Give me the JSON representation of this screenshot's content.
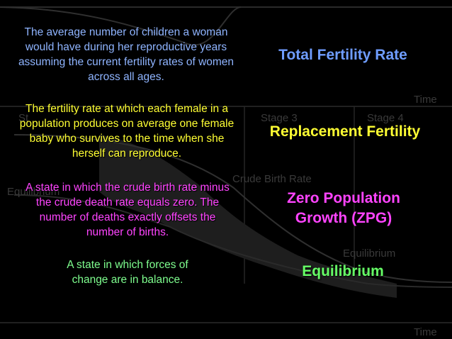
{
  "background_graph": {
    "stage3": "Stage 3",
    "stage4": "Stage 4",
    "stage_left": "St",
    "equilibrium_left": "Equilibrium",
    "crude_birth_rate": "Crude Birth Rate",
    "equilibrium_right": "Equilibrium",
    "time_top": "Time",
    "time_bottom": "Time"
  },
  "definitions": [
    {
      "text": "The average number of children a woman would have during her reproductive years assuming the current fertility rates of women across all ages.",
      "color": "#8fb4ff"
    },
    {
      "text": "The fertility rate at which each female in a population produces on average one female baby who survives to the time when she herself can reproduce.",
      "color": "#ffff33"
    },
    {
      "text": "A state in which the crude birth rate minus the crude death rate equals zero. The number of deaths exactly offsets the number of births.",
      "color": "#ff44ff"
    },
    {
      "text": "A state in which forces of change are in balance.",
      "color": "#7fff8f"
    }
  ],
  "terms": [
    {
      "text": "Total Fertility Rate",
      "color": "#6f9dff"
    },
    {
      "text": "Replacement Fertility",
      "color": "#ffff33"
    },
    {
      "text": "Zero Population Growth (ZPG)",
      "color": "#ff44ff"
    },
    {
      "text": "Equilibrium",
      "color": "#66ff66"
    }
  ]
}
